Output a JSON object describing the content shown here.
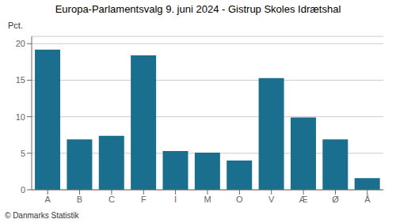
{
  "chart_data": {
    "type": "bar",
    "title": "Europa-Parlamentsvalg 9. juni 2024 - Gistrup Skoles Idrætshal",
    "ylabel": "Pct.",
    "annotation": "© Danmarks Statistik",
    "categories": [
      "A",
      "B",
      "C",
      "F",
      "I",
      "M",
      "O",
      "V",
      "Æ",
      "Ø",
      "Å"
    ],
    "values": [
      19.2,
      6.9,
      7.4,
      18.4,
      5.3,
      5.1,
      4.0,
      15.3,
      9.9,
      6.9,
      1.6
    ],
    "color": "#1a6e8e",
    "ylim": [
      0,
      21
    ],
    "yticks": [
      0,
      5,
      10,
      15,
      20
    ],
    "grid": true
  }
}
